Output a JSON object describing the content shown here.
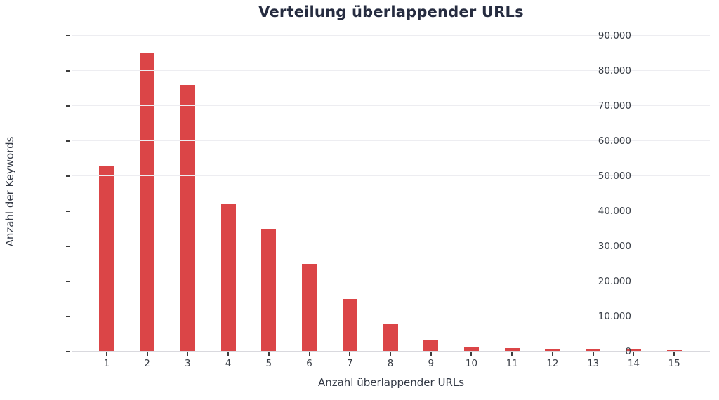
{
  "chart_data": {
    "type": "bar",
    "title": "Verteilung überlappender URLs",
    "xlabel": "Anzahl überlappender URLs",
    "ylabel": "Anzahl der Keywords",
    "categories": [
      "1",
      "2",
      "3",
      "4",
      "5",
      "6",
      "7",
      "8",
      "9",
      "10",
      "11",
      "12",
      "13",
      "14",
      "15"
    ],
    "values": [
      53000,
      85000,
      76000,
      42000,
      35000,
      25000,
      15000,
      8000,
      3500,
      1500,
      1000,
      800,
      800,
      600,
      400
    ],
    "ylim": [
      0,
      90000
    ],
    "ytick_step": 10000,
    "ytick_labels": [
      "0",
      "10.000",
      "20.000",
      "30.000",
      "40.000",
      "50.000",
      "60.000",
      "70.000",
      "80.000",
      "90.000"
    ],
    "grid": true,
    "legend_position": "none"
  },
  "colors": {
    "bar": "#db4547",
    "title": "#262c40",
    "tick_text": "#3a3f47",
    "axis_label_text": "#343a46",
    "gridline": "#ededf1",
    "baseline": "#d9d9de",
    "tick_mark": "#3c3c3c",
    "background": "#ffffff"
  }
}
